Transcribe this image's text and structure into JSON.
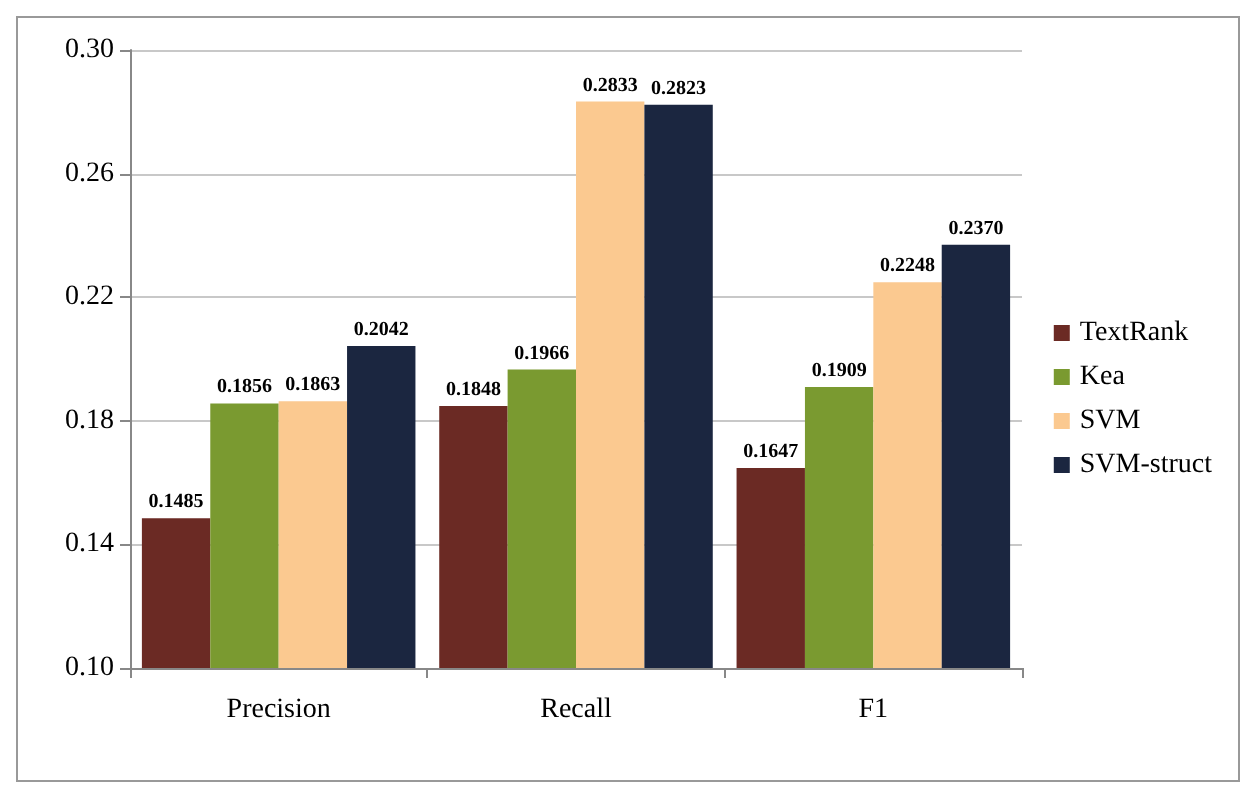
{
  "chart_data": {
    "type": "bar",
    "categories": [
      "Precision",
      "Recall",
      "F1"
    ],
    "series": [
      {
        "name": "TextRank",
        "color": "#6b2a24",
        "values": [
          0.1485,
          0.1848,
          0.1647
        ]
      },
      {
        "name": "Kea",
        "color": "#7a9a30",
        "values": [
          0.1856,
          0.1966,
          0.1909
        ]
      },
      {
        "name": "SVM",
        "color": "#fbc990",
        "values": [
          0.1863,
          0.2833,
          0.2248
        ]
      },
      {
        "name": "SVM-struct",
        "color": "#1b2640",
        "values": [
          0.2042,
          0.2823,
          0.237
        ]
      }
    ],
    "value_labels": [
      [
        "0.1485",
        "0.1848",
        "0.1647"
      ],
      [
        "0.1856",
        "0.1966",
        "0.1909"
      ],
      [
        "0.1863",
        "0.2833",
        "0.2248"
      ],
      [
        "0.2042",
        "0.2823",
        "0.2370"
      ]
    ],
    "ylim": [
      0.1,
      0.3
    ],
    "yticks": [
      {
        "value": 0.1,
        "label": "0.10"
      },
      {
        "value": 0.14,
        "label": "0.14"
      },
      {
        "value": 0.18,
        "label": "0.18"
      },
      {
        "value": 0.22,
        "label": "0.22"
      },
      {
        "value": 0.26,
        "label": "0.26"
      },
      {
        "value": 0.3,
        "label": "0.30"
      }
    ],
    "grid": "y",
    "legend": "right"
  }
}
